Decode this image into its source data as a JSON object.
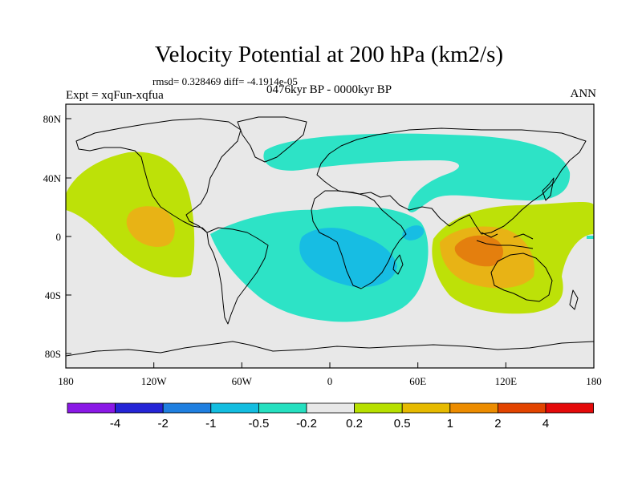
{
  "title": "Velocity Potential at 200 hPa (km2/s)",
  "stats": "rmsd= 0.328469  diff= -4.1914e-05",
  "experiment": "Expt = xqFun-xqfua",
  "period": "0476kyr BP - 0000kyr BP",
  "season": "ANN",
  "axes": {
    "x_ticks": [
      "180",
      "120W",
      "60W",
      "0",
      "60E",
      "120E",
      "180"
    ],
    "y_ticks": [
      "80N",
      "40N",
      "0",
      "40S",
      "80S"
    ]
  },
  "colorbar": {
    "labels": [
      "-4",
      "-2",
      "-1",
      "-0.5",
      "-0.2",
      "0.2",
      "0.5",
      "1",
      "2",
      "4"
    ],
    "colors": [
      "#8a18e6",
      "#2424d6",
      "#1f7fe0",
      "#13bde0",
      "#25e0c0",
      "#e8e8e8",
      "#b7e000",
      "#e6ba00",
      "#ec8c00",
      "#e24400",
      "#e40a0a"
    ]
  },
  "map_colors": {
    "background": "#e8e8e8",
    "neg_weak": "#2de3c6",
    "neg_mid": "#17bde3",
    "pos_weak": "#bde108",
    "pos_mid": "#e8b315",
    "pos_strong": "#e47f0e"
  }
}
